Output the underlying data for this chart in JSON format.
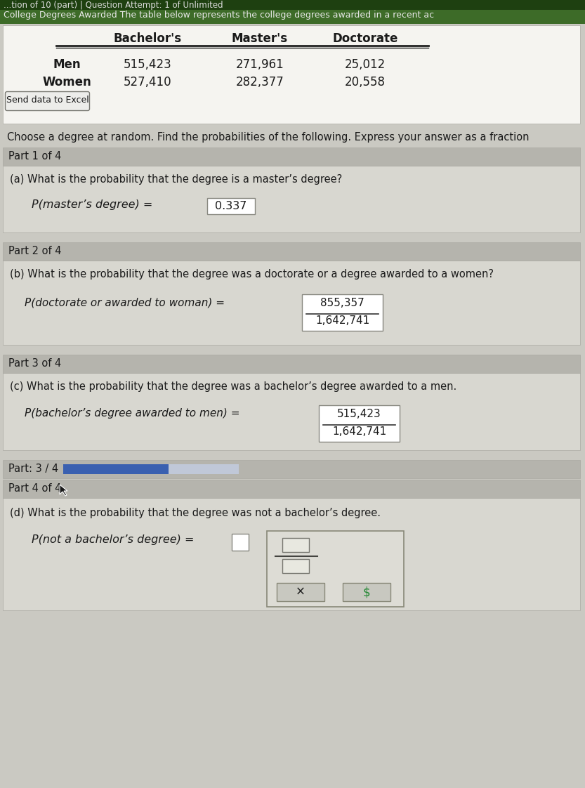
{
  "title_line": "College Degrees Awarded The table below represents the college degrees awarded in a recent ac",
  "table_col_headers": [
    "Bachelor's",
    "Master's",
    "Doctorate"
  ],
  "row_men": [
    "Men",
    "515,423",
    "271,961",
    "25,012"
  ],
  "row_women": [
    "Women",
    "527,410",
    "282,377",
    "20,558"
  ],
  "send_data_btn": "Send data to Excel",
  "intro_text": "Choose a degree at random. Find the probabilities of the following. Express your answer as a fraction",
  "part1_header": "Part 1 of 4",
  "part1_question": "(a) What is the probability that the degree is a master’s degree?",
  "part1_formula": "P(master’s degree) =",
  "part1_answer": "0.337",
  "part2_header": "Part 2 of 4",
  "part2_question": "(b) What is the probability that the degree was a doctorate or a degree awarded to a women?",
  "part2_formula": "P(doctorate or awarded to woman) =",
  "part2_numerator": "855,357",
  "part2_denominator": "1,642,741",
  "part3_header": "Part 3 of 4",
  "part3_question": "(c) What is the probability that the degree was a bachelor’s degree awarded to a men.",
  "part3_formula": "P(bachelor’s degree awarded to men) =",
  "part3_numerator": "515,423",
  "part3_denominator": "1,642,741",
  "part34_header": "Part: 3 / 4",
  "part4_header": "Part 4 of 4",
  "part4_question": "(d) What is the probability that the degree was not a bachelor’s degree.",
  "part4_formula": "P(not a bachelor’s degree) =",
  "bg_main": "#cac9c2",
  "bg_white": "#f5f4f0",
  "bg_content": "#d8d7d0",
  "bg_part_header": "#b5b4ad",
  "bg_top_bar1": "#2d5a1b",
  "bg_top_bar2": "#3d6b28",
  "border_color": "#aaa9a2",
  "text_dark": "#1a1a1a",
  "answer_box_bg": "#ffffff",
  "answer_box_border": "#888880",
  "blue_bar_color": "#3a60b0",
  "blue_bar_light": "#c0c8d8"
}
